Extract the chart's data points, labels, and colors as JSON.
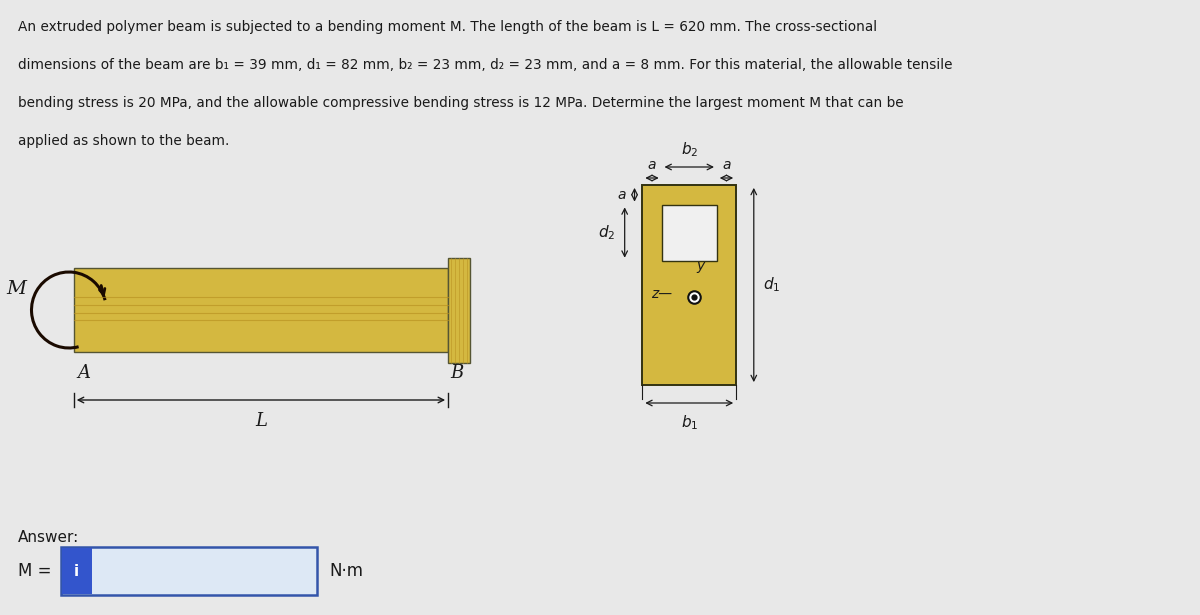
{
  "bg_color": "#e8e8e8",
  "beam_color": "#d4b840",
  "text_color": "#1a1a1a",
  "problem_text_line1": "An extruded polymer beam is subjected to a bending moment M. The length of the beam is L = 620 mm. The cross-sectional",
  "problem_text_line2": "dimensions of the beam are b₁ = 39 mm, d₁ = 82 mm, b₂ = 23 mm, d₂ = 23 mm, and a = 8 mm. For this material, the allowable tensile",
  "problem_text_line3": "bending stress is 20 MPa, and the allowable compressive bending stress is 12 MPa. Determine the largest moment M that can be",
  "problem_text_line4": "applied as shown to the beam.",
  "answer_text": "Answer:",
  "M_label": "M =",
  "Nm_label": "N·m"
}
